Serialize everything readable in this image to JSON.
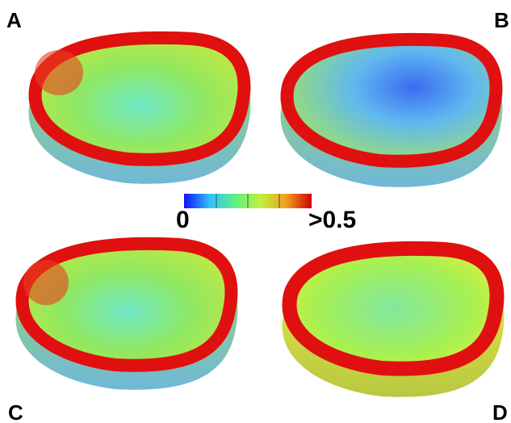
{
  "panels": [
    {
      "label": "A"
    },
    {
      "label": "B"
    },
    {
      "label": "C"
    },
    {
      "label": "D"
    }
  ],
  "colorbar": {
    "min_label": "0",
    "max_label": ">0.5"
  }
}
